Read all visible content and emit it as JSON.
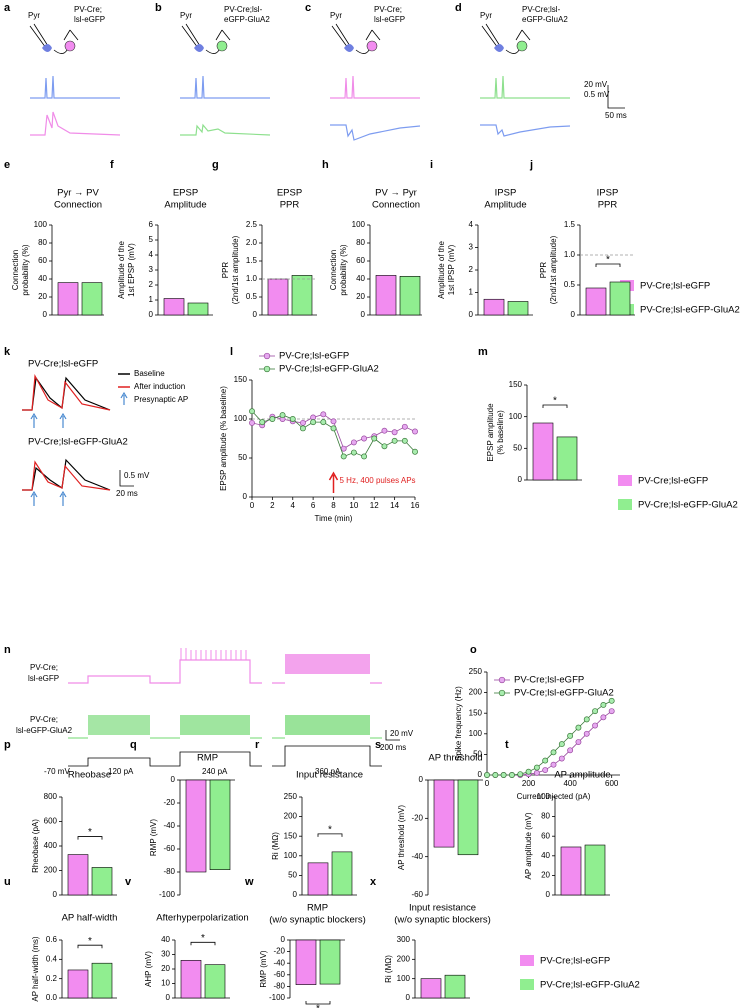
{
  "figure": {
    "legend": [
      "PV-Cre;lsl-eGFP",
      "PV-Cre;lsl-eGFP-GluA2"
    ],
    "a": {
      "letter": "a",
      "pyr": "Pyr",
      "label": [
        "PV-Cre;",
        "lsl-eGFP"
      ]
    },
    "b": {
      "letter": "b",
      "pyr": "Pyr",
      "label": [
        "PV-Cre;lsl-",
        "eGFP-GluA2"
      ]
    },
    "c": {
      "letter": "c",
      "pyr": "Pyr",
      "label": [
        "PV-Cre;",
        "lsl-eGFP"
      ]
    },
    "d": {
      "letter": "d",
      "pyr": "Pyr",
      "label": [
        "PV-Cre;lsl-",
        "eGFP-GluA2"
      ]
    },
    "scale_top": [
      "20 mV",
      "0.5 mV",
      "50 ms"
    ],
    "k": {
      "letter": "k",
      "groups": [
        "PV-Cre;lsl-eGFP",
        "PV-Cre;lsl-eGFP-GluA2"
      ],
      "legend": [
        "Baseline",
        "After induction",
        "Presynaptic AP"
      ],
      "scale": [
        "0.5 mV",
        "20 ms"
      ]
    },
    "n": {
      "letter": "n",
      "row1": [
        "PV-Cre;",
        "lsl-eGFP"
      ],
      "row2": [
        "PV-Cre;",
        "lsl-eGFP-GluA2"
      ],
      "hold": "-70 mV",
      "steps": [
        "120 pA",
        "240 pA",
        "360 pA"
      ],
      "scale": [
        "20 mV",
        "200 ms"
      ]
    }
  },
  "chart_data": [
    {
      "type": "bar",
      "panel": "e",
      "title": [
        "Pyr → PV",
        "Connection"
      ],
      "ylabel": [
        "Connection",
        "probability (%)"
      ],
      "categories": [
        "PV-Cre;lsl-eGFP",
        "PV-Cre;lsl-eGFP-GluA2"
      ],
      "values": [
        36,
        36
      ],
      "colors": [
        "#f28cf0",
        "#90ee90"
      ],
      "ylim": [
        0,
        100
      ],
      "yticks": [
        0,
        20,
        40,
        60,
        80,
        100
      ]
    },
    {
      "type": "bar",
      "panel": "f",
      "title": [
        "EPSP",
        "Amplitude"
      ],
      "ylabel": [
        "Amplitude of the",
        "1st EPSP (mV)"
      ],
      "categories": [
        "PV-Cre;lsl-eGFP",
        "PV-Cre;lsl-eGFP-GluA2"
      ],
      "values": [
        1.1,
        0.8
      ],
      "colors": [
        "#f28cf0",
        "#90ee90"
      ],
      "ylim": [
        0,
        6
      ],
      "yticks": [
        0,
        1,
        2,
        3,
        4,
        5,
        6
      ]
    },
    {
      "type": "bar",
      "panel": "g",
      "title": [
        "EPSP",
        "PPR"
      ],
      "ylabel": [
        "PPR",
        "(2nd/1st amplitude)"
      ],
      "categories": [
        "PV-Cre;lsl-eGFP",
        "PV-Cre;lsl-eGFP-GluA2"
      ],
      "values": [
        1.0,
        1.1
      ],
      "colors": [
        "#f28cf0",
        "#90ee90"
      ],
      "ylim": [
        0,
        2.5
      ],
      "yticks": [
        0,
        0.5,
        {
          "value": 1,
          "label": "1.0"
        },
        1.5,
        {
          "value": 2,
          "label": "2.0"
        },
        2.5
      ],
      "hline": 1
    },
    {
      "type": "bar",
      "panel": "h",
      "title": [
        "PV → Pyr",
        "Connection"
      ],
      "ylabel": [
        "Connection",
        "probability (%)"
      ],
      "categories": [
        "PV-Cre;lsl-eGFP",
        "PV-Cre;lsl-eGFP-GluA2"
      ],
      "values": [
        44,
        43
      ],
      "colors": [
        "#f28cf0",
        "#90ee90"
      ],
      "ylim": [
        0,
        100
      ],
      "yticks": [
        0,
        20,
        40,
        60,
        80,
        100
      ]
    },
    {
      "type": "bar",
      "panel": "i",
      "title": [
        "IPSP",
        "Amplitude"
      ],
      "ylabel": [
        "Amplitude of the",
        "1st IPSP (mV)"
      ],
      "categories": [
        "PV-Cre;lsl-eGFP",
        "PV-Cre;lsl-eGFP-GluA2"
      ],
      "values": [
        0.7,
        0.6
      ],
      "colors": [
        "#f28cf0",
        "#90ee90"
      ],
      "ylim": [
        0,
        4
      ],
      "yticks": [
        0,
        1,
        2,
        3,
        4
      ]
    },
    {
      "type": "bar",
      "panel": "j",
      "title": [
        "IPSP",
        "PPR"
      ],
      "ylabel": [
        "PPR",
        "(2nd/1st amplitude)"
      ],
      "categories": [
        "PV-Cre;lsl-eGFP",
        "PV-Cre;lsl-eGFP-GluA2"
      ],
      "values": [
        0.45,
        0.55
      ],
      "colors": [
        "#f28cf0",
        "#90ee90"
      ],
      "ylim": [
        0,
        1.5
      ],
      "yticks": [
        0,
        0.5,
        {
          "value": 1,
          "label": "1.0"
        },
        1.5
      ],
      "hline": 1,
      "annotation": "*"
    },
    {
      "type": "line",
      "panel": "l",
      "xlabel": "Time (min)",
      "ylabel": [
        "EPSP amplitude (% baseline)"
      ],
      "x": [
        0,
        1,
        2,
        3,
        4,
        5,
        6,
        7,
        8,
        9,
        10,
        11,
        12,
        13,
        14,
        15,
        16
      ],
      "series": [
        {
          "name": "PV-Cre;lsl-eGFP",
          "color": "#e6a8f0",
          "values": [
            95,
            92,
            103,
            100,
            97,
            95,
            102,
            106,
            97,
            62,
            70,
            75,
            78,
            85,
            83,
            90,
            84
          ]
        },
        {
          "name": "PV-Cre;lsl-eGFP-GluA2",
          "color": "#a8ecae",
          "values": [
            110,
            96,
            100,
            105,
            100,
            88,
            96,
            96,
            88,
            52,
            57,
            52,
            75,
            65,
            72,
            72,
            58
          ]
        }
      ],
      "xlim": [
        0,
        16
      ],
      "xticks": [
        0,
        2,
        4,
        6,
        8,
        10,
        12,
        14,
        16
      ],
      "ylim": [
        0,
        150
      ],
      "yticks": [
        0,
        50,
        100,
        150
      ],
      "hline": 100,
      "annotation": "5 Hz, 400 pulses APs",
      "arrow_x": 8
    },
    {
      "type": "bar",
      "panel": "m",
      "title": [],
      "ylabel": [
        "EPSP amplitude",
        "(% baseline)"
      ],
      "categories": [
        "PV-Cre;lsl-eGFP",
        "PV-Cre;lsl-eGFP-GluA2"
      ],
      "values": [
        90,
        68
      ],
      "colors": [
        "#f28cf0",
        "#90ee90"
      ],
      "ylim": [
        0,
        150
      ],
      "yticks": [
        0,
        50,
        100,
        150
      ],
      "annotation": "*"
    },
    {
      "type": "line",
      "panel": "o",
      "xlabel": "Current injected (pA)",
      "ylabel": [
        "Spike frequency (Hz)"
      ],
      "x": [
        0,
        40,
        80,
        120,
        160,
        200,
        240,
        280,
        320,
        360,
        400,
        440,
        480,
        520,
        560,
        600
      ],
      "series": [
        {
          "name": "PV-Cre;lsl-eGFP",
          "color": "#e6a8f0",
          "values": [
            0,
            0,
            0,
            0,
            0,
            2,
            5,
            12,
            25,
            40,
            60,
            80,
            100,
            120,
            140,
            155
          ]
        },
        {
          "name": "PV-Cre;lsl-eGFP-GluA2",
          "color": "#a8ecae",
          "values": [
            0,
            0,
            0,
            0,
            2,
            8,
            18,
            35,
            55,
            75,
            95,
            115,
            135,
            155,
            170,
            180
          ]
        }
      ],
      "xlim": [
        0,
        640
      ],
      "xticks": [
        0,
        200,
        400,
        600
      ],
      "ylim": [
        0,
        250
      ],
      "yticks": [
        0,
        50,
        100,
        150,
        200,
        250
      ]
    },
    {
      "type": "bar",
      "panel": "p",
      "title": [
        "Rheobase"
      ],
      "ylabel": [
        "Rheobase (pA)"
      ],
      "categories": [
        "PV-Cre;lsl-eGFP",
        "PV-Cre;lsl-eGFP-GluA2"
      ],
      "values": [
        330,
        225
      ],
      "colors": [
        "#f28cf0",
        "#90ee90"
      ],
      "ylim": [
        0,
        800
      ],
      "yticks": [
        0,
        200,
        400,
        600,
        800
      ],
      "annotation": "*"
    },
    {
      "type": "bar",
      "panel": "q",
      "title": [
        "RMP"
      ],
      "ylabel": [
        "RMP (mV)"
      ],
      "categories": [
        "PV-Cre;lsl-eGFP",
        "PV-Cre;lsl-eGFP-GluA2"
      ],
      "values": [
        -80,
        -78
      ],
      "colors": [
        "#f28cf0",
        "#90ee90"
      ],
      "ylim": [
        -100,
        0
      ],
      "yticks": [
        0,
        -20,
        -40,
        -60,
        -80,
        -100
      ]
    },
    {
      "type": "bar",
      "panel": "r",
      "title": [
        "Input resistance"
      ],
      "ylabel": [
        "Ri (MΩ)"
      ],
      "categories": [
        "PV-Cre;lsl-eGFP",
        "PV-Cre;lsl-eGFP-GluA2"
      ],
      "values": [
        82,
        110
      ],
      "colors": [
        "#f28cf0",
        "#90ee90"
      ],
      "ylim": [
        0,
        250
      ],
      "yticks": [
        0,
        50,
        100,
        150,
        200,
        250
      ],
      "annotation": "*"
    },
    {
      "type": "bar",
      "panel": "s",
      "title": [
        "AP threshold"
      ],
      "ylabel": [
        "AP threshold (mV)"
      ],
      "categories": [
        "PV-Cre;lsl-eGFP",
        "PV-Cre;lsl-eGFP-GluA2"
      ],
      "values": [
        -35,
        -39
      ],
      "colors": [
        "#f28cf0",
        "#90ee90"
      ],
      "ylim": [
        -60,
        0
      ],
      "yticks": [
        0,
        -20,
        -40,
        -60
      ]
    },
    {
      "type": "bar",
      "panel": "t",
      "title": [
        "AP amplitude"
      ],
      "ylabel": [
        "AP amplitude (mV)"
      ],
      "categories": [
        "PV-Cre;lsl-eGFP",
        "PV-Cre;lsl-eGFP-GluA2"
      ],
      "values": [
        49,
        51
      ],
      "colors": [
        "#f28cf0",
        "#90ee90"
      ],
      "ylim": [
        0,
        100
      ],
      "yticks": [
        0,
        20,
        40,
        60,
        80,
        100
      ]
    },
    {
      "type": "bar",
      "panel": "u",
      "title": [
        "AP half-width"
      ],
      "ylabel": [
        "AP half-width (ms)"
      ],
      "categories": [
        "PV-Cre;lsl-eGFP",
        "PV-Cre;lsl-eGFP-GluA2"
      ],
      "values": [
        0.29,
        0.36
      ],
      "colors": [
        "#f28cf0",
        "#90ee90"
      ],
      "ylim": [
        0,
        0.6
      ],
      "yticks": [
        {
          "value": 0,
          "label": "0.0"
        },
        0.2,
        0.4,
        0.6
      ],
      "annotation": "*"
    },
    {
      "type": "bar",
      "panel": "v",
      "title": [
        "Afterhyperpolarization"
      ],
      "ylabel": [
        "AHP (mV)"
      ],
      "categories": [
        "PV-Cre;lsl-eGFP",
        "PV-Cre;lsl-eGFP-GluA2"
      ],
      "values": [
        26,
        23
      ],
      "colors": [
        "#f28cf0",
        "#90ee90"
      ],
      "ylim": [
        0,
        40
      ],
      "yticks": [
        0,
        10,
        20,
        30,
        40
      ],
      "annotation": "*"
    },
    {
      "type": "bar",
      "panel": "w",
      "title": [
        "RMP",
        "(w/o synaptic blockers)"
      ],
      "ylabel": [
        "RMP (mV)"
      ],
      "categories": [
        "PV-Cre;lsl-eGFP",
        "PV-Cre;lsl-eGFP-GluA2"
      ],
      "values": [
        -77,
        -76
      ],
      "colors": [
        "#f28cf0",
        "#90ee90"
      ],
      "ylim": [
        -100,
        0
      ],
      "yticks": [
        0,
        -20,
        -40,
        -60,
        -80,
        -100
      ],
      "annotation": "*"
    },
    {
      "type": "bar",
      "panel": "x",
      "title": [
        "Input resistance",
        "(w/o synaptic blockers)"
      ],
      "ylabel": [
        "Ri (MΩ)"
      ],
      "categories": [
        "PV-Cre;lsl-eGFP",
        "PV-Cre;lsl-eGFP-GluA2"
      ],
      "values": [
        100,
        118
      ],
      "colors": [
        "#f28cf0",
        "#90ee90"
      ],
      "ylim": [
        0,
        300
      ],
      "yticks": [
        0,
        100,
        200,
        300
      ]
    }
  ]
}
